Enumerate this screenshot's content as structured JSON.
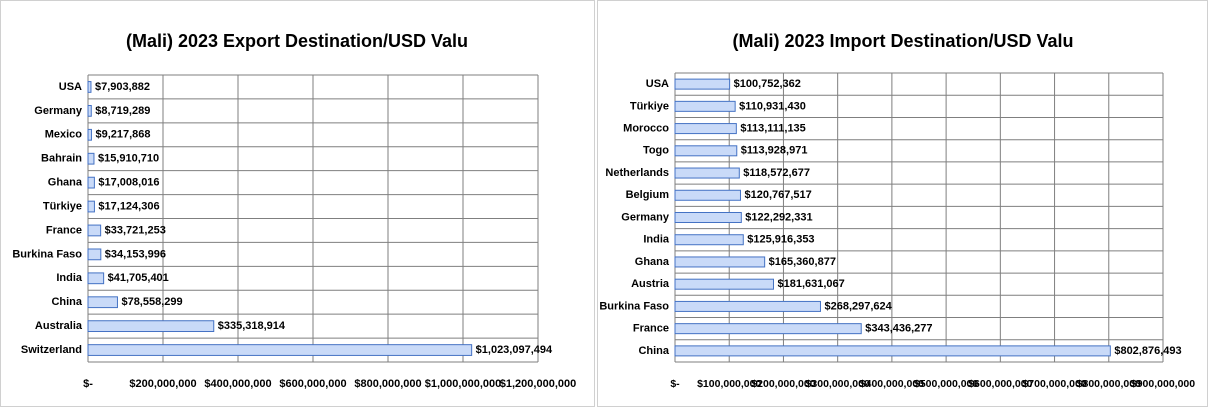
{
  "chart_data": [
    {
      "type": "hbar",
      "title": "(Mali)  2023 Export Destination/USD Valu",
      "categories": [
        "USA",
        "Germany",
        "Mexico",
        "Bahrain",
        "Ghana",
        "Türkiye",
        "France",
        "Burkina Faso",
        "India",
        "China",
        "Australia",
        "Switzerland"
      ],
      "values": [
        7903882,
        8719289,
        9217868,
        15910710,
        17008016,
        17124306,
        33721253,
        34153996,
        41705401,
        78558299,
        335318914,
        1023097494
      ],
      "value_labels": [
        "$7,903,882",
        "$8,719,289",
        "$9,217,868",
        "$15,910,710",
        "$17,008,016",
        "$17,124,306",
        "$33,721,253",
        "$34,153,996",
        "$41,705,401",
        "$78,558,299",
        "$335,318,914",
        "$1,023,097,494"
      ],
      "color": "#c9daf8",
      "xlim": [
        0,
        1200000000
      ],
      "xticks": [
        {
          "value": 0,
          "label": "$-"
        },
        {
          "value": 200000000,
          "label": "$200,000,000"
        },
        {
          "value": 400000000,
          "label": "$400,000,000"
        },
        {
          "value": 600000000,
          "label": "$600,000,000"
        },
        {
          "value": 800000000,
          "label": "$800,000,000"
        },
        {
          "value": 1000000000,
          "label": "$1,000,000,000"
        },
        {
          "value": 1200000000,
          "label": "$1,200,000,000"
        }
      ],
      "grid": true
    },
    {
      "type": "hbar",
      "title": "(Mali) 2023 Import Destination/USD Valu",
      "categories": [
        "USA",
        "Türkiye",
        "Morocco",
        "Togo",
        "Netherlands",
        "Belgium",
        "Germany",
        "India",
        "Ghana",
        "Austria",
        "Burkina Faso",
        "France",
        "China"
      ],
      "values": [
        100752362,
        110931430,
        113111135,
        113928971,
        118572677,
        120767517,
        122292331,
        125916353,
        165360877,
        181631067,
        268297624,
        343436277,
        802876493
      ],
      "value_labels": [
        "$100,752,362",
        "$110,931,430",
        "$113,111,135",
        "$113,928,971",
        "$118,572,677",
        "$120,767,517",
        "$122,292,331",
        "$125,916,353",
        "$165,360,877",
        "$181,631,067",
        "$268,297,624",
        "$343,436,277",
        "$802,876,493"
      ],
      "color": "#c9daf8",
      "xlim": [
        0,
        900000000
      ],
      "xticks": [
        {
          "value": 0,
          "label": "$-"
        },
        {
          "value": 100000000,
          "label": "$100,000,000"
        },
        {
          "value": 200000000,
          "label": "$200,000,000"
        },
        {
          "value": 300000000,
          "label": "$300,000,000"
        },
        {
          "value": 400000000,
          "label": "$400,000,000"
        },
        {
          "value": 500000000,
          "label": "$500,000,000"
        },
        {
          "value": 600000000,
          "label": "$600,000,000"
        },
        {
          "value": 700000000,
          "label": "$700,000,000"
        },
        {
          "value": 800000000,
          "label": "$800,000,000"
        },
        {
          "value": 900000000,
          "label": "$900,000,000"
        }
      ],
      "grid": true
    }
  ]
}
